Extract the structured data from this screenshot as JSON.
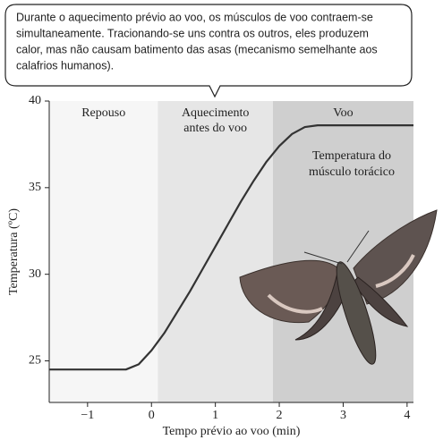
{
  "chart_data": {
    "type": "line",
    "annotation_box": [
      "Durante o aquecimento prévio ao voo, os músculos de voo contraem-se",
      "simultaneamente. Tracionando-se uns contra os outros, eles produzem",
      "calor, mas não causam batimento das asas (mecanismo semelhante aos",
      "calafrios humanos)."
    ],
    "x_label": "Tempo prévio ao voo (min)",
    "y_label": "Temperatura (ºC)",
    "regions": [
      {
        "label": [
          "Repouso"
        ],
        "start": -1.6,
        "end": 0.1,
        "color": "#f6f6f6"
      },
      {
        "label": [
          "Aquecimento",
          "antes do voo"
        ],
        "start": 0.1,
        "end": 1.9,
        "color": "#e6e6e6"
      },
      {
        "label": [
          "Voo"
        ],
        "start": 1.9,
        "end": 4.1,
        "color": "#cfcfcf"
      }
    ],
    "series": [
      {
        "name": [
          "Temperatura do",
          "músculo torácico"
        ],
        "color": "#333333",
        "x": [
          -1.6,
          -0.4,
          -0.2,
          0,
          0.2,
          0.4,
          0.6,
          0.8,
          1,
          1.2,
          1.4,
          1.6,
          1.8,
          2,
          2.2,
          2.4,
          2.6,
          3,
          3.5,
          4.1
        ],
        "values": [
          24.5,
          24.5,
          24.8,
          25.6,
          26.6,
          27.8,
          29.0,
          30.3,
          31.6,
          32.9,
          34.2,
          35.4,
          36.5,
          37.4,
          38.1,
          38.5,
          38.6,
          38.6,
          38.6,
          38.6
        ]
      }
    ],
    "xlim": [
      -1.6,
      4.1
    ],
    "xticks": [
      {
        "value": -1,
        "label": "−1"
      },
      0,
      1,
      2,
      3,
      4
    ],
    "ylim": [
      22.6,
      40
    ],
    "yticks": [
      25,
      30,
      35,
      40
    ]
  }
}
